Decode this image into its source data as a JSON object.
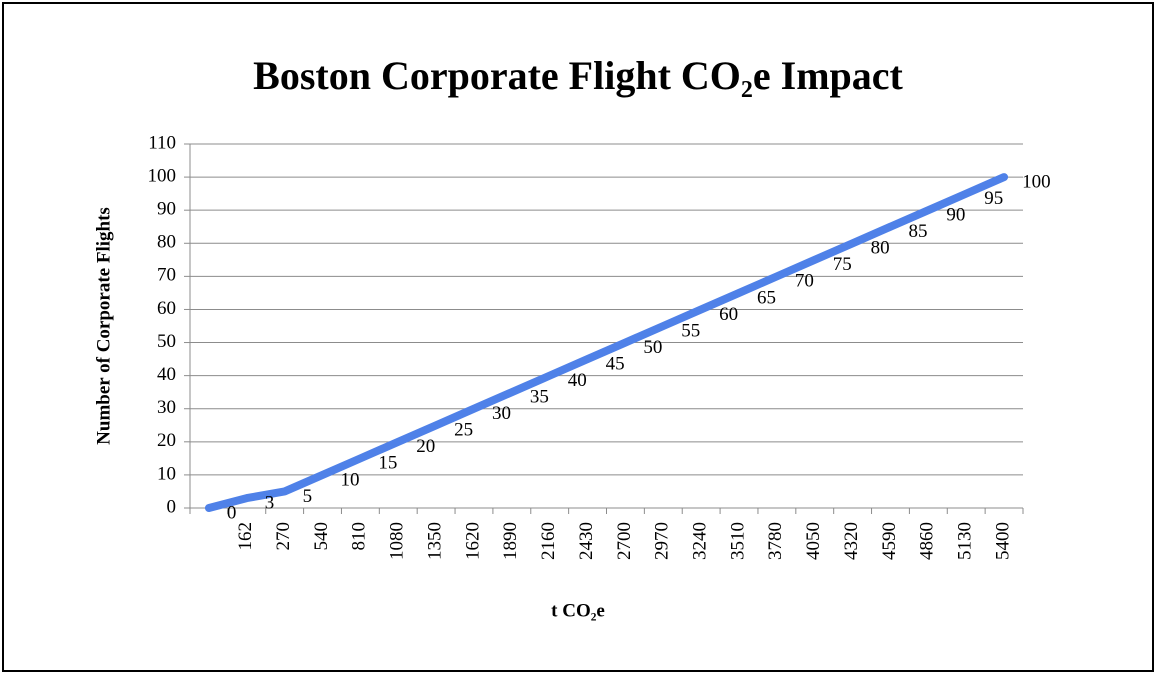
{
  "chart_data": {
    "type": "line",
    "title": "Boston Corporate Flight CO₂e Impact",
    "x_label": "t CO₂e",
    "y_label": "Number of Corporate Flights",
    "categories": [
      null,
      "162",
      "270",
      "540",
      "810",
      "1080",
      "1350",
      "1620",
      "1890",
      "2160",
      "2430",
      "2700",
      "2970",
      "3240",
      "3510",
      "3780",
      "4050",
      "4320",
      "4590",
      "4860",
      "5130",
      "5400"
    ],
    "values": [
      0,
      3,
      5,
      10,
      15,
      20,
      25,
      30,
      35,
      40,
      45,
      50,
      55,
      60,
      65,
      70,
      75,
      80,
      85,
      90,
      95,
      100
    ],
    "color": "#4f81e8",
    "ylim": [
      0,
      110
    ],
    "yticks": [
      0,
      10,
      20,
      30,
      40,
      50,
      60,
      70,
      80,
      90,
      100,
      110
    ],
    "grid": true
  }
}
